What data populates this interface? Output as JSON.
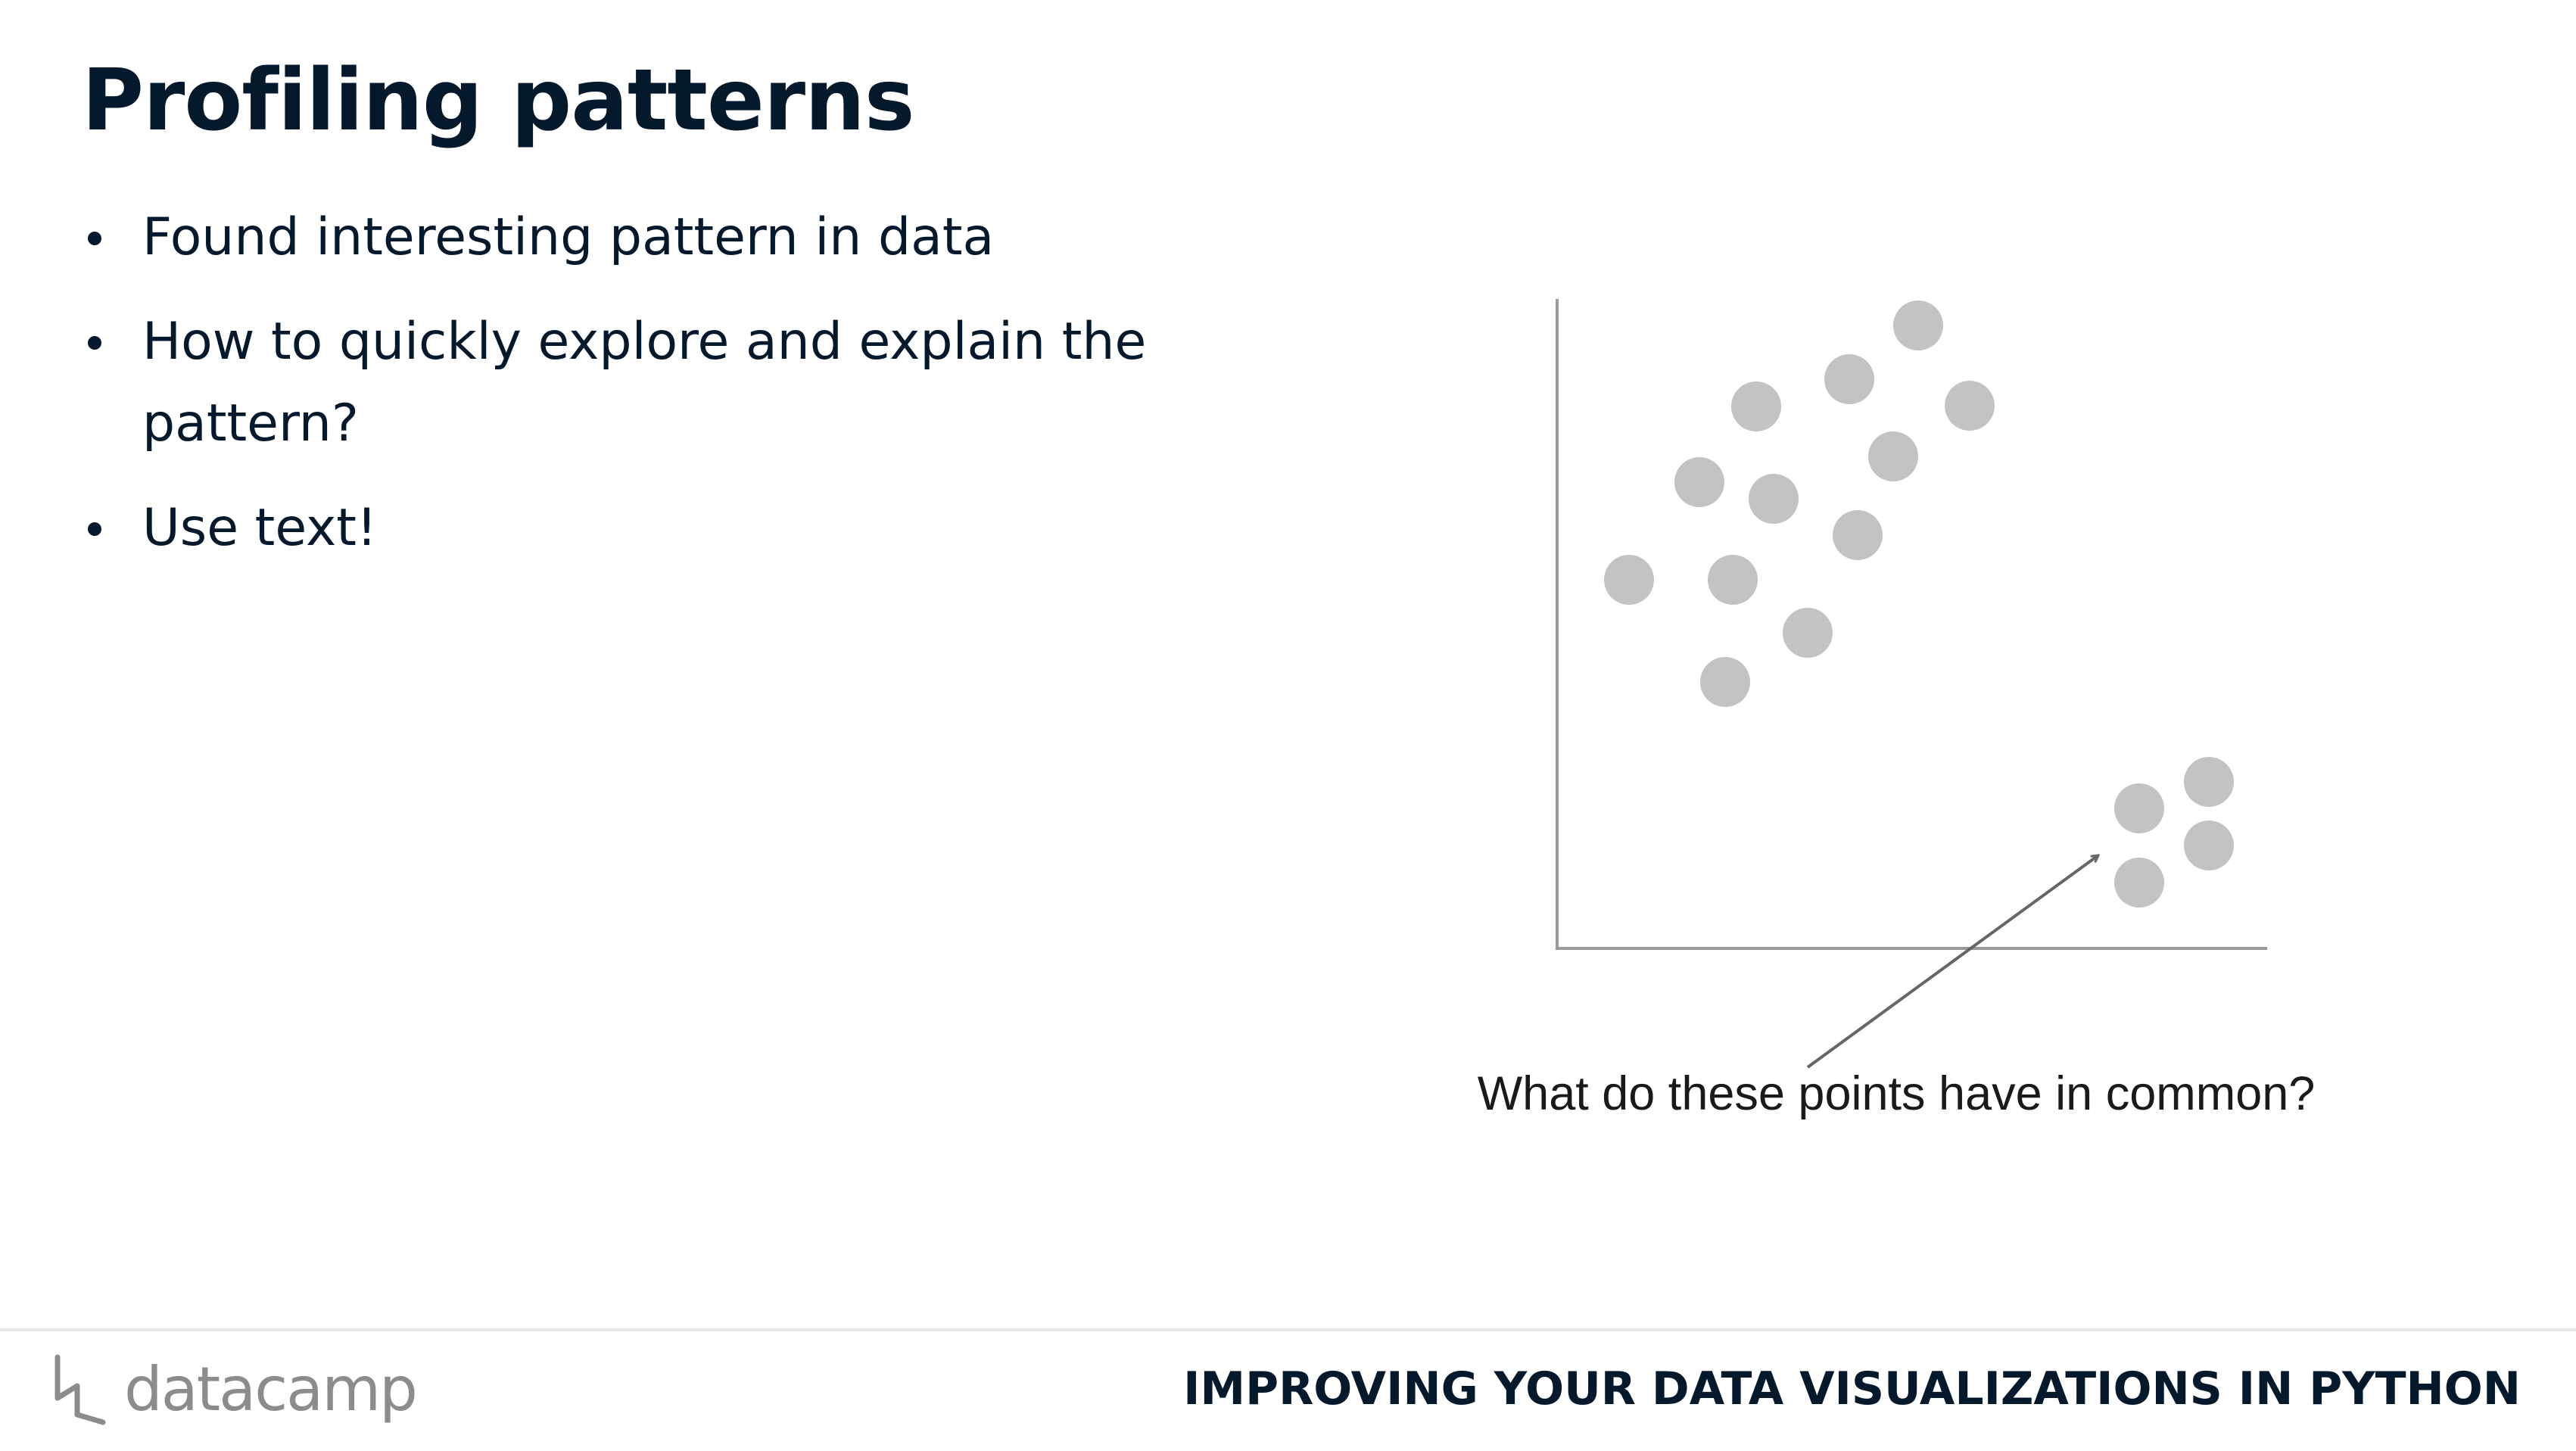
{
  "slide": {
    "title": "Profiling patterns",
    "bullets": [
      "Found interesting pattern in data",
      "How to quickly explore and explain the pattern?",
      "Use text!"
    ]
  },
  "figure": {
    "annotation": "What do these points have in common?",
    "colors": {
      "point": "#c3c3c3",
      "axis": "#9a9a9a",
      "arrow": "#666666"
    }
  },
  "footer": {
    "brand": "datacamp",
    "brand_icon": "datacamp-logo-icon",
    "course": "IMPROVING YOUR DATA VISUALIZATIONS IN PYTHON"
  },
  "colors": {
    "text": "#05192d",
    "rule": "#e5e5e5",
    "brand_gray": "#8c8c8c"
  }
}
